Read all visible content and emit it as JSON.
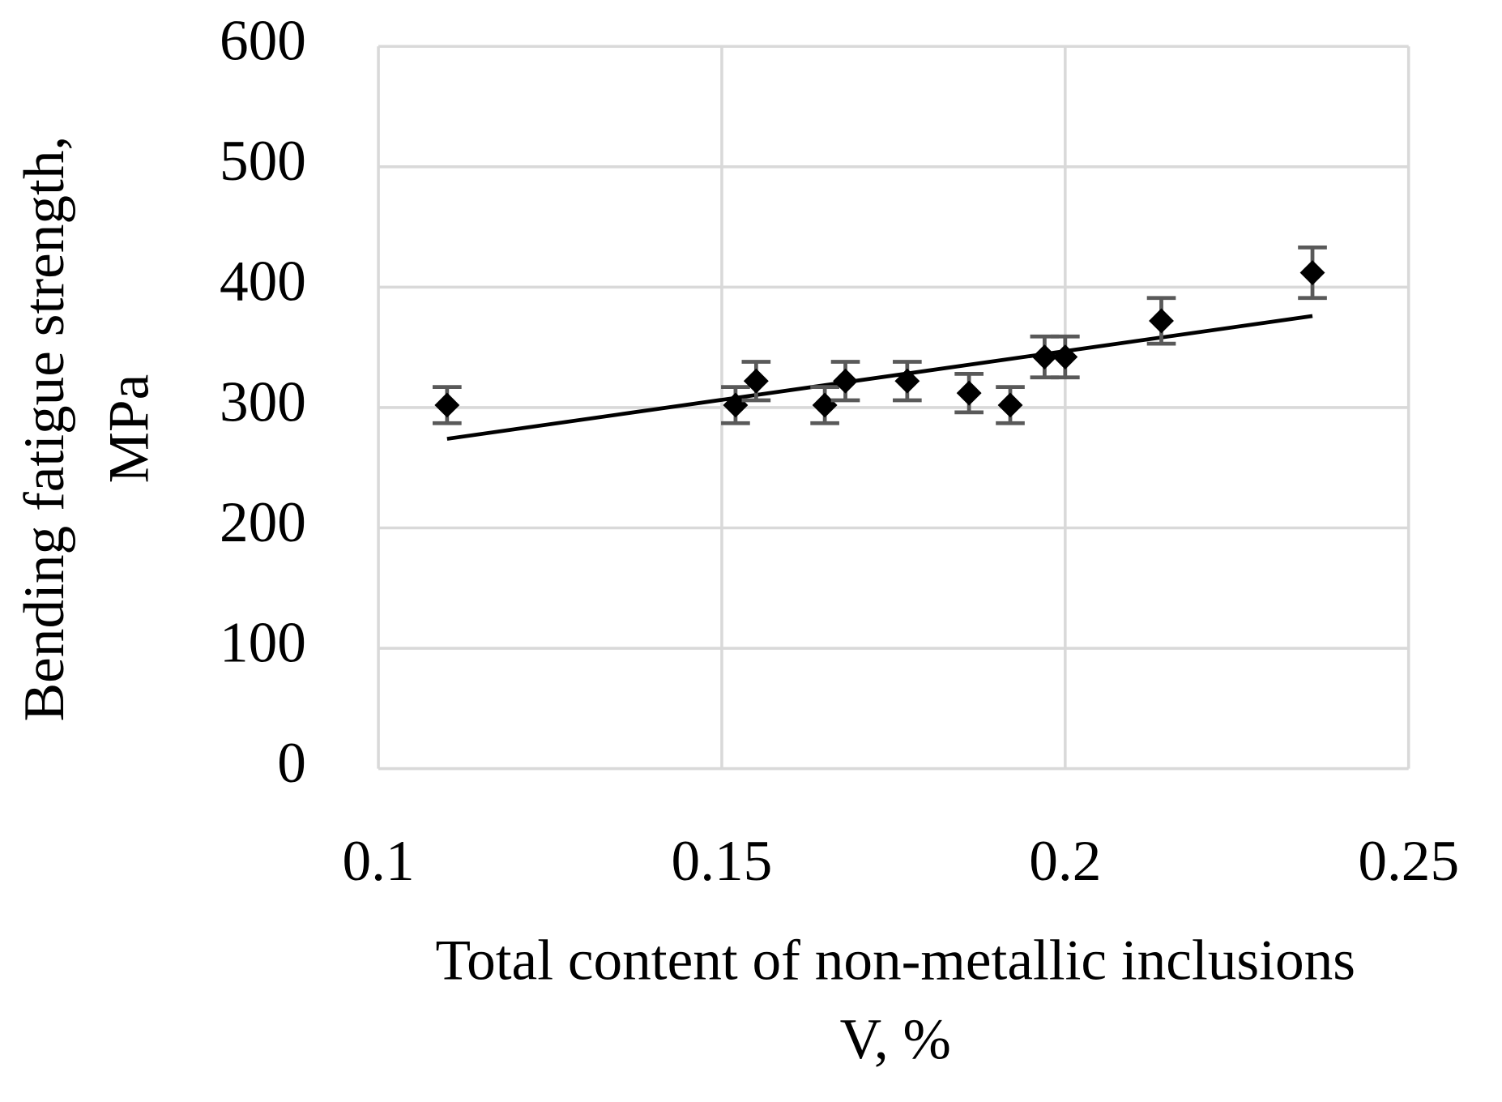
{
  "chart_data": {
    "type": "scatter",
    "x_label": [
      "Total content of non-metallic inclusions",
      "V, %"
    ],
    "y_label": [
      "Bending fatigue strength,",
      "MPa"
    ],
    "x": [
      0.11,
      0.152,
      0.155,
      0.165,
      0.168,
      0.177,
      0.186,
      0.192,
      0.197,
      0.2,
      0.214,
      0.236
    ],
    "values": [
      302,
      302,
      322,
      302,
      322,
      322,
      312,
      302,
      342,
      342,
      372,
      412
    ],
    "errors": [
      15,
      15,
      16,
      15,
      16,
      16,
      16,
      15,
      17,
      17,
      19,
      21
    ],
    "color": "#000000",
    "error_color": "#595959",
    "trendline": {
      "x": [
        0.11,
        0.236
      ],
      "y": [
        274,
        376
      ],
      "color": "#000000"
    },
    "xlim": [
      0.1,
      0.25
    ],
    "xticks": [
      0.1,
      0.15,
      0.2,
      0.25
    ],
    "ylim": [
      0,
      600
    ],
    "yticks": [
      0,
      100,
      200,
      300,
      400,
      500,
      600
    ],
    "grid": true
  }
}
